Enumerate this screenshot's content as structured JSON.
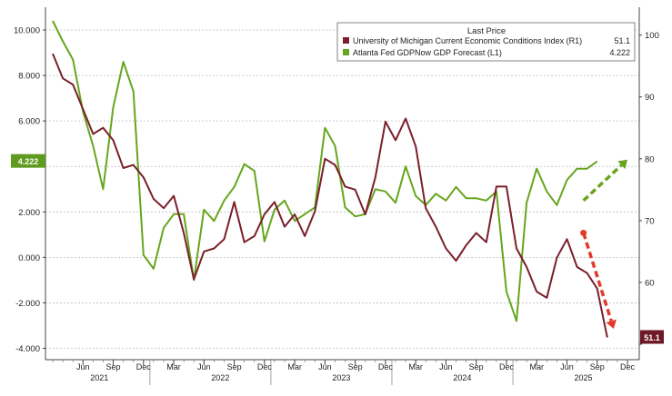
{
  "chart_data": {
    "type": "line",
    "title": "",
    "x_months": [
      "2021-03",
      "2021-04",
      "2021-05",
      "2021-06",
      "2021-07",
      "2021-08",
      "2021-09",
      "2021-10",
      "2021-11",
      "2021-12",
      "2022-01",
      "2022-02",
      "2022-03",
      "2022-04",
      "2022-05",
      "2022-06",
      "2022-07",
      "2022-08",
      "2022-09",
      "2022-10",
      "2022-11",
      "2022-12",
      "2023-01",
      "2023-02",
      "2023-03",
      "2023-04",
      "2023-05",
      "2023-06",
      "2023-07",
      "2023-08",
      "2023-09",
      "2023-10",
      "2023-11",
      "2023-12",
      "2024-01",
      "2024-02",
      "2024-03",
      "2024-04",
      "2024-05",
      "2024-06",
      "2024-07",
      "2024-08",
      "2024-09",
      "2024-10",
      "2024-11",
      "2024-12",
      "2025-01",
      "2025-02",
      "2025-03",
      "2025-04",
      "2025-05",
      "2025-06",
      "2025-07",
      "2025-08",
      "2025-09",
      "2025-10",
      "2025-11",
      "2025-12"
    ],
    "x_tick_labels": [
      {
        "month": "2021-06",
        "label": "Jun",
        "year": "2021"
      },
      {
        "month": "2021-09",
        "label": "Sep"
      },
      {
        "month": "2021-12",
        "label": "Dec"
      },
      {
        "month": "2022-03",
        "label": "Mar"
      },
      {
        "month": "2022-06",
        "label": "Jun",
        "year": "2022"
      },
      {
        "month": "2022-09",
        "label": "Sep"
      },
      {
        "month": "2022-12",
        "label": "Dec"
      },
      {
        "month": "2023-03",
        "label": "Mar"
      },
      {
        "month": "2023-06",
        "label": "Jun",
        "year": "2023"
      },
      {
        "month": "2023-09",
        "label": "Sep"
      },
      {
        "month": "2023-12",
        "label": "Dec"
      },
      {
        "month": "2024-03",
        "label": "Mar"
      },
      {
        "month": "2024-06",
        "label": "Jun",
        "year": "2024"
      },
      {
        "month": "2024-09",
        "label": "Sep"
      },
      {
        "month": "2024-12",
        "label": "Dec"
      },
      {
        "month": "2025-03",
        "label": "Mar"
      },
      {
        "month": "2025-06",
        "label": "Jun",
        "year": "2025"
      },
      {
        "month": "2025-09",
        "label": "Sep"
      },
      {
        "month": "2025-12",
        "label": "Dec"
      }
    ],
    "left_axis": {
      "ylim": [
        -4.5,
        11.0
      ],
      "ticks": [
        -4,
        -2,
        0,
        2,
        4,
        6,
        8,
        10
      ],
      "tick_labels": [
        "-4.000",
        "-2.000",
        "0.000",
        "2.000",
        "",
        "6.000",
        "8.000",
        "10.000"
      ]
    },
    "right_axis": {
      "ylim": [
        47.5,
        104.5
      ],
      "ticks": [
        50,
        60,
        70,
        80,
        90,
        100
      ],
      "tick_labels": [
        "",
        "60",
        "70",
        "80",
        "90",
        "100"
      ]
    },
    "legend": {
      "title": "Last Price",
      "position": "top-right",
      "entries": [
        {
          "label": "University of Michigan Current Economic Conditions Index  (R1)",
          "last": "51.1"
        },
        {
          "label": "Atlanta Fed GDPNow GDP Forecast  (L1)",
          "last": "4.222"
        }
      ]
    },
    "series": [
      {
        "name": "Atlanta Fed GDPNow GDP Forecast",
        "axis": "left",
        "color": "#66a61e",
        "values": [
          10.4,
          9.5,
          8.7,
          6.4,
          4.9,
          3.0,
          6.6,
          8.6,
          7.3,
          0.1,
          -0.5,
          1.3,
          1.9,
          1.9,
          -1.0,
          2.1,
          1.6,
          2.5,
          3.1,
          4.1,
          3.8,
          0.7,
          2.1,
          2.5,
          1.6,
          1.9,
          2.2,
          5.7,
          4.9,
          2.2,
          1.8,
          1.9,
          3.0,
          2.9,
          2.4,
          4.0,
          2.7,
          2.3,
          2.8,
          2.5,
          3.1,
          2.6,
          2.6,
          2.5,
          2.9,
          -1.5,
          -2.8,
          2.4,
          3.9,
          2.9,
          2.3,
          3.4,
          3.9,
          3.9,
          4.222
        ],
        "last_label": "4.222"
      },
      {
        "name": "University of Michigan Current Economic Conditions Index",
        "axis": "right",
        "color": "#7a1f2b",
        "values": [
          97.0,
          93.0,
          92.0,
          88.0,
          84.0,
          85.0,
          83.0,
          78.5,
          79.0,
          77.0,
          73.5,
          72.0,
          74.0,
          68.0,
          60.5,
          65.0,
          65.5,
          67.0,
          73.0,
          66.5,
          67.5,
          71.0,
          73.0,
          69.0,
          71.0,
          67.5,
          71.5,
          80.0,
          79.0,
          75.5,
          75.0,
          71.0,
          77.0,
          86.0,
          83.0,
          86.5,
          82.0,
          72.0,
          69.0,
          65.5,
          63.5,
          66.0,
          68.0,
          66.5,
          75.5,
          75.5,
          65.5,
          62.5,
          58.5,
          57.5,
          64.0,
          67.0,
          62.5,
          61.5,
          59.0,
          51.1
        ],
        "last_label": "51.1"
      }
    ],
    "annotations": [
      {
        "type": "dashed-arrow",
        "color": "#6aa31e",
        "direction": "up",
        "from_month": "2025-08",
        "to_month": "2025-12",
        "value_from": 2.5,
        "value_to": 4.3,
        "axis": "left"
      },
      {
        "type": "dashed-arrow",
        "color": "#e23b2a",
        "direction": "down",
        "from_month": "2025-08",
        "to_month": "2025-11",
        "value_from": 68.0,
        "value_to": 52.5,
        "axis": "right"
      }
    ],
    "grid": "horizontal-dashed",
    "colors": {
      "background": "#ffffff",
      "grid": "#bbbbbb",
      "green_badge": "#5e9b1e",
      "maroon_badge": "#6e1a26"
    }
  }
}
